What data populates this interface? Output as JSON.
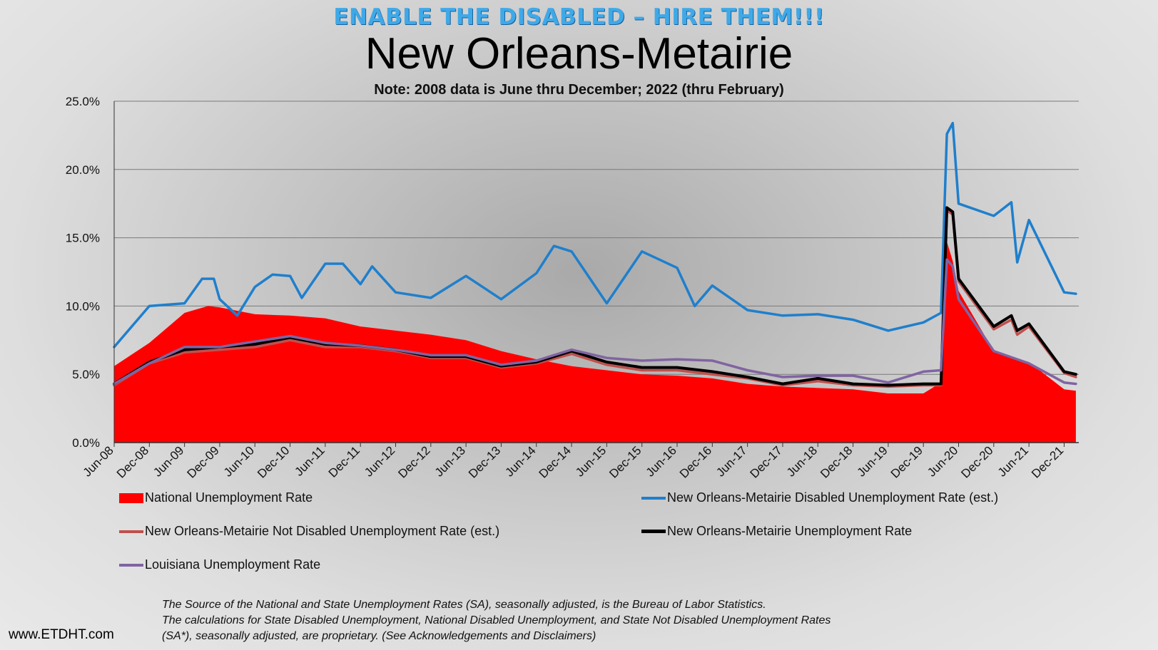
{
  "header": {
    "banner": "ENABLE THE DISABLED – HIRE THEM!!!",
    "title": "New Orleans-Metairie",
    "note": "Note: 2008 data is June thru December; 2022 (thru February)"
  },
  "footer": {
    "source_lines": [
      "The Source of the National and State Unemployment Rates (SA), seasonally adjusted, is the Bureau of Labor Statistics.",
      "The calculations for State Disabled Unemployment, National Disabled Unemployment, and State Not Disabled Unemployment Rates",
      "(SA*), seasonally adjusted, are proprietary. (See Acknowledgements and Disclaimers)"
    ],
    "website": "www.ETDHT.com"
  },
  "chart_data": {
    "type": "line",
    "title": "New Orleans-Metairie",
    "subtitle": "Note: 2008 data is June thru December; 2022 (thru February)",
    "xlabel": "",
    "ylabel": "",
    "x_start": "Jun-08",
    "x_end": "Feb-22",
    "ylim": [
      0,
      25
    ],
    "y_ticks": [
      "0.0%",
      "5.0%",
      "10.0%",
      "15.0%",
      "20.0%",
      "25.0%"
    ],
    "x_ticks": [
      "Jun-08",
      "Dec-08",
      "Jun-09",
      "Dec-09",
      "Jun-10",
      "Dec-10",
      "Jun-11",
      "Dec-11",
      "Jun-12",
      "Dec-12",
      "Jun-13",
      "Dec-13",
      "Jun-14",
      "Dec-14",
      "Jun-15",
      "Dec-15",
      "Jun-16",
      "Dec-16",
      "Jun-17",
      "Dec-17",
      "Jun-18",
      "Dec-18",
      "Jun-19",
      "Dec-19",
      "Jun-20",
      "Dec-20",
      "Jun-21",
      "Dec-21"
    ],
    "grid": true,
    "legend_position": "bottom",
    "series": [
      {
        "name": "National Unemployment Rate",
        "style": "area",
        "color": "#ff0000",
        "points": [
          [
            "Jun-08",
            5.6
          ],
          [
            "Dec-08",
            7.3
          ],
          [
            "Jun-09",
            9.5
          ],
          [
            "Oct-09",
            10.0
          ],
          [
            "Dec-09",
            9.9
          ],
          [
            "Jun-10",
            9.4
          ],
          [
            "Dec-10",
            9.3
          ],
          [
            "Jun-11",
            9.1
          ],
          [
            "Dec-11",
            8.5
          ],
          [
            "Jun-12",
            8.2
          ],
          [
            "Dec-12",
            7.9
          ],
          [
            "Jun-13",
            7.5
          ],
          [
            "Dec-13",
            6.7
          ],
          [
            "Jun-14",
            6.1
          ],
          [
            "Dec-14",
            5.6
          ],
          [
            "Jun-15",
            5.3
          ],
          [
            "Dec-15",
            5.0
          ],
          [
            "Jun-16",
            4.9
          ],
          [
            "Dec-16",
            4.7
          ],
          [
            "Jun-17",
            4.3
          ],
          [
            "Dec-17",
            4.1
          ],
          [
            "Jun-18",
            4.0
          ],
          [
            "Dec-18",
            3.9
          ],
          [
            "Jun-19",
            3.6
          ],
          [
            "Dec-19",
            3.6
          ],
          [
            "Mar-20",
            4.4
          ],
          [
            "Apr-20",
            14.7
          ],
          [
            "May-20",
            13.3
          ],
          [
            "Jun-20",
            11.1
          ],
          [
            "Dec-20",
            6.7
          ],
          [
            "Jun-21",
            5.9
          ],
          [
            "Dec-21",
            3.9
          ],
          [
            "Feb-22",
            3.8
          ]
        ]
      },
      {
        "name": "New Orleans-Metairie Disabled Unemployment Rate  (est.)",
        "style": "line",
        "color": "#1f7fcc",
        "points": [
          [
            "Jun-08",
            7.0
          ],
          [
            "Dec-08",
            10.0
          ],
          [
            "Jun-09",
            10.2
          ],
          [
            "Sep-09",
            12.0
          ],
          [
            "Nov-09",
            12.0
          ],
          [
            "Dec-09",
            10.5
          ],
          [
            "Mar-10",
            9.3
          ],
          [
            "Jun-10",
            11.4
          ],
          [
            "Sep-10",
            12.3
          ],
          [
            "Dec-10",
            12.2
          ],
          [
            "Feb-11",
            10.6
          ],
          [
            "Jun-11",
            13.1
          ],
          [
            "Sep-11",
            13.1
          ],
          [
            "Dec-11",
            11.6
          ],
          [
            "Feb-12",
            12.9
          ],
          [
            "Jun-12",
            11.0
          ],
          [
            "Dec-12",
            10.6
          ],
          [
            "Jun-13",
            12.2
          ],
          [
            "Dec-13",
            10.5
          ],
          [
            "Jun-14",
            12.4
          ],
          [
            "Sep-14",
            14.4
          ],
          [
            "Dec-14",
            14.0
          ],
          [
            "Jun-15",
            10.2
          ],
          [
            "Dec-15",
            14.0
          ],
          [
            "Jun-16",
            12.8
          ],
          [
            "Sep-16",
            10.0
          ],
          [
            "Dec-16",
            11.5
          ],
          [
            "Jun-17",
            9.7
          ],
          [
            "Dec-17",
            9.3
          ],
          [
            "Jun-18",
            9.4
          ],
          [
            "Dec-18",
            9.0
          ],
          [
            "Jun-19",
            8.2
          ],
          [
            "Dec-19",
            8.8
          ],
          [
            "Mar-20",
            9.5
          ],
          [
            "Apr-20",
            22.6
          ],
          [
            "May-20",
            23.4
          ],
          [
            "Jun-20",
            17.5
          ],
          [
            "Dec-20",
            16.6
          ],
          [
            "Mar-21",
            17.6
          ],
          [
            "Apr-21",
            13.2
          ],
          [
            "Jun-21",
            16.3
          ],
          [
            "Dec-21",
            11.0
          ],
          [
            "Feb-22",
            10.9
          ]
        ]
      },
      {
        "name": "New Orleans-Metairie Not Disabled Unemployment Rate  (est.)",
        "style": "line",
        "color": "#c0504d",
        "points": [
          [
            "Jun-08",
            4.2
          ],
          [
            "Dec-08",
            5.8
          ],
          [
            "Jun-09",
            6.6
          ],
          [
            "Dec-09",
            6.8
          ],
          [
            "Jun-10",
            7.0
          ],
          [
            "Dec-10",
            7.5
          ],
          [
            "Jun-11",
            7.0
          ],
          [
            "Dec-11",
            7.0
          ],
          [
            "Jun-12",
            6.7
          ],
          [
            "Dec-12",
            6.2
          ],
          [
            "Jun-13",
            6.2
          ],
          [
            "Dec-13",
            5.5
          ],
          [
            "Jun-14",
            5.8
          ],
          [
            "Dec-14",
            6.5
          ],
          [
            "Jun-15",
            5.7
          ],
          [
            "Dec-15",
            5.3
          ],
          [
            "Jun-16",
            5.3
          ],
          [
            "Dec-16",
            5.0
          ],
          [
            "Jun-17",
            4.7
          ],
          [
            "Dec-17",
            4.2
          ],
          [
            "Jun-18",
            4.5
          ],
          [
            "Dec-18",
            4.2
          ],
          [
            "Jun-19",
            4.1
          ],
          [
            "Dec-19",
            4.2
          ],
          [
            "Mar-20",
            4.2
          ],
          [
            "Apr-20",
            17.0
          ],
          [
            "May-20",
            16.7
          ],
          [
            "Jun-20",
            11.8
          ],
          [
            "Dec-20",
            8.3
          ],
          [
            "Mar-21",
            9.0
          ],
          [
            "Apr-21",
            7.9
          ],
          [
            "Jun-21",
            8.5
          ],
          [
            "Dec-21",
            5.1
          ],
          [
            "Feb-22",
            4.8
          ]
        ]
      },
      {
        "name": "New Orleans-Metairie Unemployment Rate",
        "style": "line",
        "color": "#000000",
        "points": [
          [
            "Jun-08",
            4.3
          ],
          [
            "Dec-08",
            5.9
          ],
          [
            "Jun-09",
            6.8
          ],
          [
            "Dec-09",
            7.0
          ],
          [
            "Jun-10",
            7.2
          ],
          [
            "Dec-10",
            7.7
          ],
          [
            "Jun-11",
            7.2
          ],
          [
            "Dec-11",
            7.1
          ],
          [
            "Jun-12",
            6.8
          ],
          [
            "Dec-12",
            6.3
          ],
          [
            "Jun-13",
            6.3
          ],
          [
            "Dec-13",
            5.6
          ],
          [
            "Jun-14",
            5.9
          ],
          [
            "Dec-14",
            6.7
          ],
          [
            "Jun-15",
            5.9
          ],
          [
            "Dec-15",
            5.5
          ],
          [
            "Jun-16",
            5.5
          ],
          [
            "Dec-16",
            5.2
          ],
          [
            "Jun-17",
            4.8
          ],
          [
            "Dec-17",
            4.3
          ],
          [
            "Jun-18",
            4.7
          ],
          [
            "Dec-18",
            4.3
          ],
          [
            "Jun-19",
            4.2
          ],
          [
            "Dec-19",
            4.3
          ],
          [
            "Mar-20",
            4.3
          ],
          [
            "Apr-20",
            17.2
          ],
          [
            "May-20",
            16.9
          ],
          [
            "Jun-20",
            12.0
          ],
          [
            "Dec-20",
            8.5
          ],
          [
            "Mar-21",
            9.3
          ],
          [
            "Apr-21",
            8.2
          ],
          [
            "Jun-21",
            8.7
          ],
          [
            "Dec-21",
            5.2
          ],
          [
            "Feb-22",
            5.0
          ]
        ]
      },
      {
        "name": "Louisiana Unemployment Rate",
        "style": "line",
        "color": "#8064a2",
        "points": [
          [
            "Jun-08",
            4.3
          ],
          [
            "Dec-08",
            5.8
          ],
          [
            "Jun-09",
            7.0
          ],
          [
            "Dec-09",
            7.0
          ],
          [
            "Jun-10",
            7.4
          ],
          [
            "Dec-10",
            7.8
          ],
          [
            "Jun-11",
            7.3
          ],
          [
            "Dec-11",
            7.1
          ],
          [
            "Jun-12",
            6.8
          ],
          [
            "Dec-12",
            6.4
          ],
          [
            "Jun-13",
            6.4
          ],
          [
            "Dec-13",
            5.7
          ],
          [
            "Jun-14",
            6.0
          ],
          [
            "Dec-14",
            6.8
          ],
          [
            "Jun-15",
            6.2
          ],
          [
            "Dec-15",
            6.0
          ],
          [
            "Jun-16",
            6.1
          ],
          [
            "Dec-16",
            6.0
          ],
          [
            "Jun-17",
            5.3
          ],
          [
            "Dec-17",
            4.8
          ],
          [
            "Jun-18",
            4.9
          ],
          [
            "Dec-18",
            4.9
          ],
          [
            "Jun-19",
            4.4
          ],
          [
            "Dec-19",
            5.2
          ],
          [
            "Mar-20",
            5.3
          ],
          [
            "Apr-20",
            13.4
          ],
          [
            "May-20",
            12.9
          ],
          [
            "Jun-20",
            10.5
          ],
          [
            "Dec-20",
            6.7
          ],
          [
            "Jun-21",
            5.8
          ],
          [
            "Dec-21",
            4.4
          ],
          [
            "Feb-22",
            4.3
          ]
        ]
      }
    ]
  }
}
